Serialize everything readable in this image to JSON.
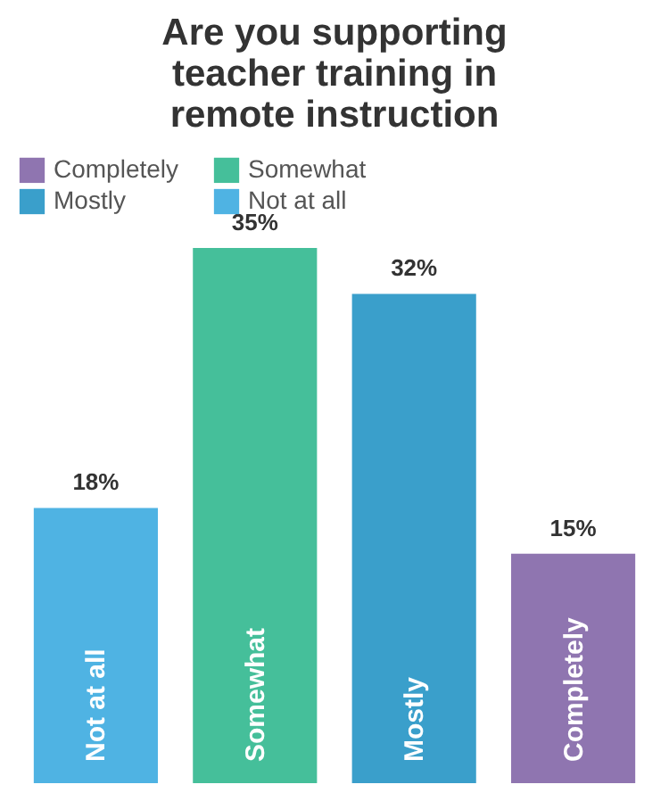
{
  "chart_data": {
    "type": "bar",
    "title": [
      "Are you supporting",
      "teacher training in",
      "remote instruction"
    ],
    "categories": [
      "Not at all",
      "Somewhat",
      "Mostly",
      "Completely"
    ],
    "series": [
      {
        "name": "Completely",
        "color": "#8f75b0",
        "values": [
          null,
          null,
          null,
          15
        ],
        "value_labels": [
          null,
          null,
          null,
          "15%"
        ]
      },
      {
        "name": "Somewhat",
        "color": "#45bf9a",
        "values": [
          null,
          35,
          null,
          null
        ],
        "value_labels": [
          null,
          "35%",
          null,
          null
        ]
      },
      {
        "name": "Mostly",
        "color": "#3a9fcb",
        "values": [
          null,
          null,
          32,
          null
        ],
        "value_labels": [
          null,
          null,
          "32%",
          null
        ]
      },
      {
        "name": "Not at all",
        "color": "#4fb3e3",
        "values": [
          18,
          null,
          null,
          null
        ],
        "value_labels": [
          "18%",
          null,
          null,
          null
        ]
      }
    ],
    "legend": "top"
  }
}
